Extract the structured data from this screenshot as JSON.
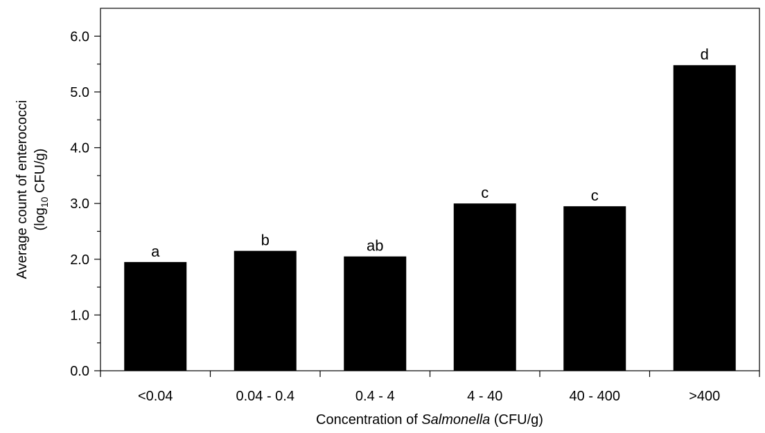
{
  "chart_data": {
    "type": "bar",
    "categories": [
      "<0.04",
      "0.04 - 0.4",
      "0.4 - 4",
      "4 - 40",
      "40 - 400",
      ">400"
    ],
    "values": [
      1.95,
      2.15,
      2.05,
      3.0,
      2.95,
      5.48
    ],
    "significance_letters": [
      "a",
      "b",
      "ab",
      "c",
      "c",
      "d"
    ],
    "xlabel": {
      "prefix": "Concentration of ",
      "italic": "Salmonella",
      "suffix": " (CFU/g)"
    },
    "ylabel": {
      "line1": "Average count of enterococci",
      "line2_prefix": "(log",
      "line2_sub": "10",
      "line2_suffix": " CFU/g)"
    },
    "ylim": [
      0,
      6.5
    ],
    "yticks": [
      "0.0",
      "1.0",
      "2.0",
      "3.0",
      "4.0",
      "5.0",
      "6.0"
    ],
    "bar_color": "#000000",
    "grid": false,
    "legend": "none"
  }
}
